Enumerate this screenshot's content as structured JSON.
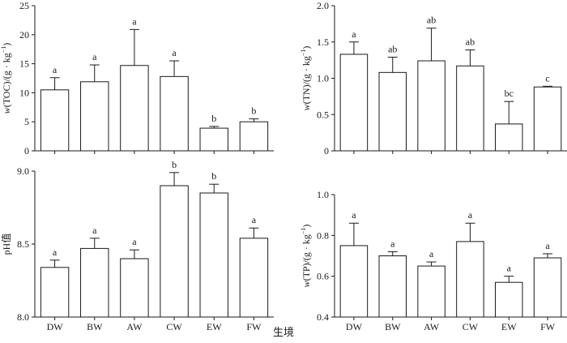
{
  "figure_label": "生境",
  "chart_data": [
    {
      "type": "bar",
      "id": "toc",
      "ylabel": "w(TOC)/(g · kg⁻¹)",
      "ylabel_parts": [
        "w",
        "(TOC)/(g · kg",
        "−1",
        ")"
      ],
      "categories": [
        "DW",
        "BW",
        "AW",
        "CW",
        "EW",
        "FW"
      ],
      "values": [
        10.5,
        11.9,
        14.7,
        12.8,
        3.9,
        5.0
      ],
      "errors": [
        2.1,
        2.9,
        6.2,
        2.7,
        0.3,
        0.5
      ],
      "letters": [
        "a",
        "a",
        "a",
        "a",
        "b",
        "b"
      ],
      "ylim": [
        0,
        25
      ],
      "yticks": [
        "0",
        "5",
        "10",
        "15",
        "20",
        "25"
      ],
      "show_xticklabels": false
    },
    {
      "type": "bar",
      "id": "tn",
      "ylabel": "w(TN)/(g · kg⁻¹)",
      "ylabel_parts": [
        "w",
        "(TN)/(g · kg",
        "−1",
        ")"
      ],
      "categories": [
        "DW",
        "BW",
        "AW",
        "CW",
        "EW",
        "FW"
      ],
      "values": [
        1.33,
        1.08,
        1.24,
        1.17,
        0.37,
        0.88
      ],
      "errors": [
        0.17,
        0.21,
        0.45,
        0.22,
        0.31,
        0.01
      ],
      "letters": [
        "a",
        "ab",
        "ab",
        "ab",
        "bc",
        "c"
      ],
      "ylim": [
        0,
        2.0
      ],
      "yticks": [
        "0",
        "0.5",
        "1.0",
        "1.5",
        "2.0"
      ],
      "show_xticklabels": false
    },
    {
      "type": "bar",
      "id": "ph",
      "ylabel": "pH值",
      "ylabel_parts": [
        "",
        "pH值",
        "",
        ""
      ],
      "categories": [
        "DW",
        "BW",
        "AW",
        "CW",
        "EW",
        "FW"
      ],
      "values": [
        8.34,
        8.47,
        8.4,
        8.9,
        8.85,
        8.54
      ],
      "errors": [
        0.05,
        0.07,
        0.06,
        0.09,
        0.06,
        0.07
      ],
      "letters": [
        "a",
        "a",
        "a",
        "b",
        "b",
        "a"
      ],
      "ylim": [
        8.0,
        9.0
      ],
      "yticks": [
        "8.0",
        "8.5",
        "9.0"
      ],
      "show_xticklabels": true
    },
    {
      "type": "bar",
      "id": "tp",
      "ylabel": "w(TP)/(g · kg⁻¹)",
      "ylabel_parts": [
        "w",
        "(TP)/(g · kg",
        "−1",
        ")"
      ],
      "categories": [
        "DW",
        "BW",
        "AW",
        "CW",
        "EW",
        "FW"
      ],
      "values": [
        0.75,
        0.7,
        0.65,
        0.77,
        0.57,
        0.69
      ],
      "errors": [
        0.11,
        0.02,
        0.02,
        0.09,
        0.03,
        0.02
      ],
      "letters": [
        "a",
        "a",
        "a",
        "a",
        "a",
        "a"
      ],
      "ylim": [
        0.4,
        1.0
      ],
      "yticks": [
        "0.4",
        "0.6",
        "0.8",
        "1.0"
      ],
      "show_xticklabels": true
    }
  ]
}
